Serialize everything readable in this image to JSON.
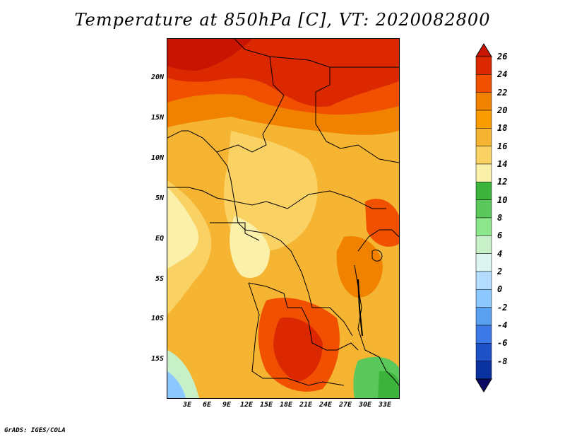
{
  "title": "Temperature at 850hPa [C], VT: 2020082800",
  "credit": "GrADS: IGES/COLA",
  "lat_ticks": [
    "20N",
    "15N",
    "10N",
    "5N",
    "EQ",
    "5S",
    "10S",
    "15S"
  ],
  "lon_ticks": [
    "3E",
    "6E",
    "9E",
    "12E",
    "15E",
    "18E",
    "21E",
    "24E",
    "27E",
    "30E",
    "33E"
  ],
  "colorbar": {
    "labels": [
      "26",
      "24",
      "22",
      "20",
      "18",
      "16",
      "14",
      "12",
      "10",
      "8",
      "6",
      "4",
      "2",
      "0",
      "-2",
      "-4",
      "-6",
      "-8"
    ],
    "colors": [
      "#c81400",
      "#dc2800",
      "#f05000",
      "#f08200",
      "#fa9b00",
      "#f5b432",
      "#fad264",
      "#faf0aa",
      "#3cb43c",
      "#5ac85a",
      "#8ce68c",
      "#c8f0c8",
      "#dcf5f0",
      "#b4dcff",
      "#8cc8ff",
      "#5aa0f0",
      "#3c78e6",
      "#1e50c8",
      "#0a32a0",
      "#0a0a64"
    ]
  },
  "icons": {
    "map": "temperature-field-map",
    "arrow_up": "colorbar-max-arrow-icon",
    "arrow_down": "colorbar-min-arrow-icon"
  }
}
